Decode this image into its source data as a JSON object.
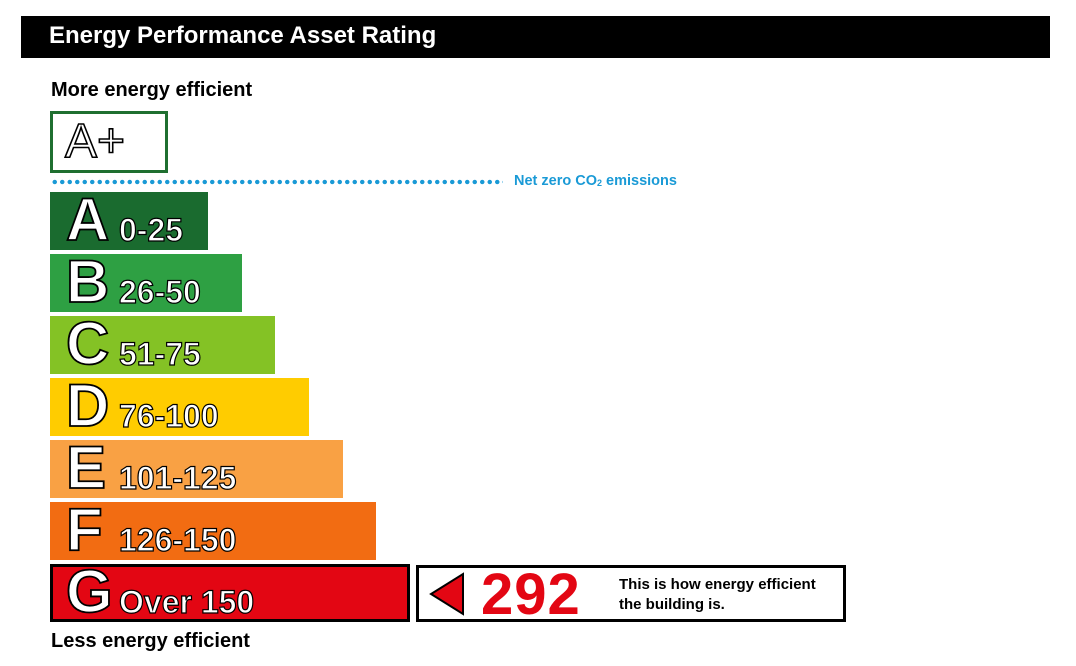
{
  "header": {
    "title": "Energy Performance Asset Rating"
  },
  "labels": {
    "more_efficient": "More energy efficient",
    "less_efficient": "Less energy efficient",
    "net_zero_prefix": "Net zero CO",
    "net_zero_sub": "2",
    "net_zero_suffix": " emissions"
  },
  "chart_data": {
    "type": "bar",
    "top_band": {
      "letter": "A+",
      "border_color": "#1f6f30"
    },
    "categories": [
      "A",
      "B",
      "C",
      "D",
      "E",
      "F",
      "G"
    ],
    "bands": [
      {
        "letter": "A",
        "range": "0-25",
        "color": "#1a6b2f"
      },
      {
        "letter": "B",
        "range": "26-50",
        "color": "#2ea043"
      },
      {
        "letter": "C",
        "range": "51-75",
        "color": "#84c225"
      },
      {
        "letter": "D",
        "range": "76-100",
        "color": "#ffcc00"
      },
      {
        "letter": "E",
        "range": "101-125",
        "color": "#f9a144"
      },
      {
        "letter": "F",
        "range": "126-150",
        "color": "#f26c12"
      },
      {
        "letter": "G",
        "range": "Over 150",
        "color": "#e30613"
      }
    ],
    "current_rating": {
      "value": "292",
      "band": "G",
      "caption": "This is how energy efficient the building is.",
      "color": "#e30613"
    },
    "net_zero_line_color": "#1a9ad6"
  }
}
